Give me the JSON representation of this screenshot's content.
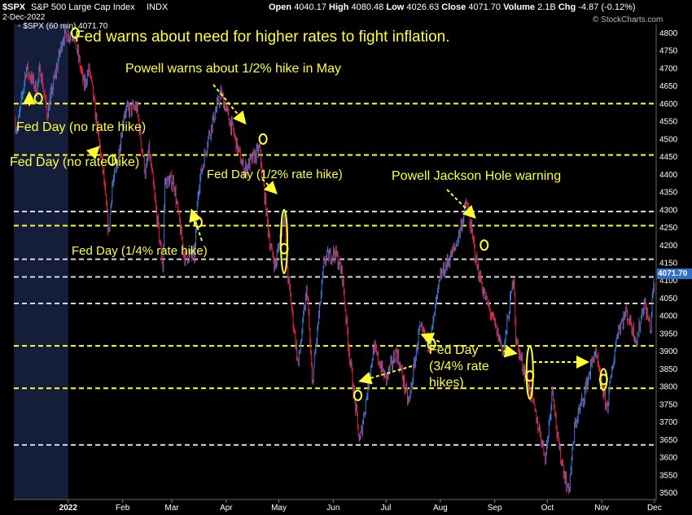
{
  "header": {
    "symbol": "$SPX",
    "name": "S&P 500 Large Cap Index",
    "exchange": "INDX",
    "date": "2-Dec-2022",
    "open_label": "Open",
    "open": "4040.17",
    "high_label": "High",
    "high": "4080.48",
    "low_label": "Low",
    "low": "4026.63",
    "close_label": "Close",
    "close": "4071.70",
    "volume_label": "Volume",
    "volume": "2.1B",
    "chg_label": "Chg",
    "chg": "-4.87 (-0.12%)",
    "watermark": "© StockCharts.com"
  },
  "legend": "$SPX (60 min) 4071.70",
  "last_price_tag": "4071.70",
  "colors": {
    "up": "#3b78d8",
    "down": "#e0223c",
    "yellow": "#ffff33",
    "dashed_white": "#d8d8d8",
    "highlight_band": "#141e3a"
  },
  "annotations": {
    "title": "Fed warns about need for higher rates to fight inflation.",
    "powell_may": "Powell warns about 1/2% hike in May",
    "fed_no_hike_1": "Fed Day (no rate hike)",
    "fed_no_hike_2": "Fed Day (no rate hike)",
    "fed_quarter": "Fed Day (1/4% rate hike)",
    "fed_half": "Fed Day (1/2% rate hike)",
    "jackson_hole": "Powell Jackson Hole warning",
    "fed_34_line1": "Fed Day",
    "fed_34_line2": "(3/4% rate",
    "fed_34_line3": "hikes)"
  },
  "chart_data": {
    "type": "candlestick",
    "interval": "60 min",
    "ylim": [
      3480,
      4830
    ],
    "y_ticks": [
      3500,
      3550,
      3600,
      3650,
      3700,
      3750,
      3800,
      3850,
      3900,
      3950,
      4000,
      4050,
      4100,
      4150,
      4200,
      4250,
      4300,
      4350,
      4400,
      4450,
      4500,
      4550,
      4600,
      4650,
      4700,
      4750,
      4800
    ],
    "x_tick_labels": [
      "2022",
      "Feb",
      "Mar",
      "Apr",
      "May",
      "Jun",
      "Jul",
      "Aug",
      "Sep",
      "Oct",
      "Nov",
      "Dec"
    ],
    "x_range": [
      "2021-12-01",
      "2022-12-02"
    ],
    "x_tick_dates": [
      "2022-01-01",
      "2022-02-01",
      "2022-03-01",
      "2022-04-01",
      "2022-05-01",
      "2022-06-01",
      "2022-07-01",
      "2022-08-01",
      "2022-09-01",
      "2022-10-01",
      "2022-11-01",
      "2022-12-01"
    ],
    "price_path": [
      [
        "2021-12-01",
        4550
      ],
      [
        "2021-12-03",
        4530
      ],
      [
        "2021-12-08",
        4700
      ],
      [
        "2021-12-14",
        4640
      ],
      [
        "2021-12-16",
        4700
      ],
      [
        "2021-12-20",
        4570
      ],
      [
        "2021-12-29",
        4790
      ],
      [
        "2022-01-04",
        4800
      ],
      [
        "2022-01-10",
        4650
      ],
      [
        "2022-01-13",
        4700
      ],
      [
        "2022-01-21",
        4400
      ],
      [
        "2022-01-24",
        4230
      ],
      [
        "2022-01-26",
        4370
      ],
      [
        "2022-01-28",
        4400
      ],
      [
        "2022-02-02",
        4580
      ],
      [
        "2022-02-09",
        4590
      ],
      [
        "2022-02-14",
        4400
      ],
      [
        "2022-02-16",
        4470
      ],
      [
        "2022-02-24",
        4130
      ],
      [
        "2022-02-25",
        4380
      ],
      [
        "2022-03-02",
        4380
      ],
      [
        "2022-03-08",
        4170
      ],
      [
        "2022-03-14",
        4170
      ],
      [
        "2022-03-16",
        4360
      ],
      [
        "2022-03-22",
        4510
      ],
      [
        "2022-03-29",
        4630
      ],
      [
        "2022-04-05",
        4520
      ],
      [
        "2022-04-11",
        4410
      ],
      [
        "2022-04-20",
        4470
      ],
      [
        "2022-04-26",
        4200
      ],
      [
        "2022-04-29",
        4140
      ],
      [
        "2022-05-04",
        4300
      ],
      [
        "2022-05-06",
        4120
      ],
      [
        "2022-05-12",
        3860
      ],
      [
        "2022-05-17",
        4080
      ],
      [
        "2022-05-20",
        3810
      ],
      [
        "2022-05-27",
        4160
      ],
      [
        "2022-06-02",
        4180
      ],
      [
        "2022-06-06",
        4120
      ],
      [
        "2022-06-10",
        3900
      ],
      [
        "2022-06-16",
        3640
      ],
      [
        "2022-06-24",
        3910
      ],
      [
        "2022-07-01",
        3820
      ],
      [
        "2022-07-07",
        3900
      ],
      [
        "2022-07-14",
        3750
      ],
      [
        "2022-07-20",
        3960
      ],
      [
        "2022-07-26",
        3920
      ],
      [
        "2022-08-01",
        4110
      ],
      [
        "2022-08-10",
        4200
      ],
      [
        "2022-08-16",
        4320
      ],
      [
        "2022-08-22",
        4140
      ],
      [
        "2022-08-26",
        4060
      ],
      [
        "2022-09-06",
        3900
      ],
      [
        "2022-09-12",
        4120
      ],
      [
        "2022-09-13",
        3930
      ],
      [
        "2022-09-21",
        3790
      ],
      [
        "2022-09-30",
        3600
      ],
      [
        "2022-10-04",
        3800
      ],
      [
        "2022-10-07",
        3640
      ],
      [
        "2022-10-13",
        3500
      ],
      [
        "2022-10-17",
        3700
      ],
      [
        "2022-10-21",
        3760
      ],
      [
        "2022-10-28",
        3900
      ],
      [
        "2022-11-02",
        3780
      ],
      [
        "2022-11-04",
        3740
      ],
      [
        "2022-11-10",
        3960
      ],
      [
        "2022-11-15",
        4010
      ],
      [
        "2022-11-21",
        3930
      ],
      [
        "2022-11-25",
        4040
      ],
      [
        "2022-11-29",
        3960
      ],
      [
        "2022-11-30",
        4080
      ],
      [
        "2022-12-02",
        4071.7
      ]
    ],
    "horizontal_lines": [
      {
        "price": 4600,
        "style": "yellow-dashed"
      },
      {
        "price": 4455,
        "style": "yellow-dashed"
      },
      {
        "price": 4295,
        "style": "white-dashed"
      },
      {
        "price": 4255,
        "style": "yellow-dashed"
      },
      {
        "price": 4160,
        "style": "white-dashed"
      },
      {
        "price": 4110,
        "style": "white-dashed"
      },
      {
        "price": 4035,
        "style": "white-dashed"
      },
      {
        "price": 3915,
        "style": "yellow-dashed"
      },
      {
        "price": 3795,
        "style": "yellow-dashed"
      },
      {
        "price": 3635,
        "style": "white-dashed"
      }
    ],
    "circle_markers": [
      [
        "2021-12-15",
        4615
      ],
      [
        "2022-01-05",
        4800
      ],
      [
        "2022-01-26",
        4440
      ],
      [
        "2022-03-16",
        4265
      ],
      [
        "2022-04-22",
        4500
      ],
      [
        "2022-05-04",
        4190
      ],
      [
        "2022-06-15",
        3775
      ],
      [
        "2022-07-27",
        3920
      ],
      [
        "2022-08-26",
        4200
      ],
      [
        "2022-09-21",
        3830
      ],
      [
        "2022-11-02",
        3820
      ]
    ]
  }
}
